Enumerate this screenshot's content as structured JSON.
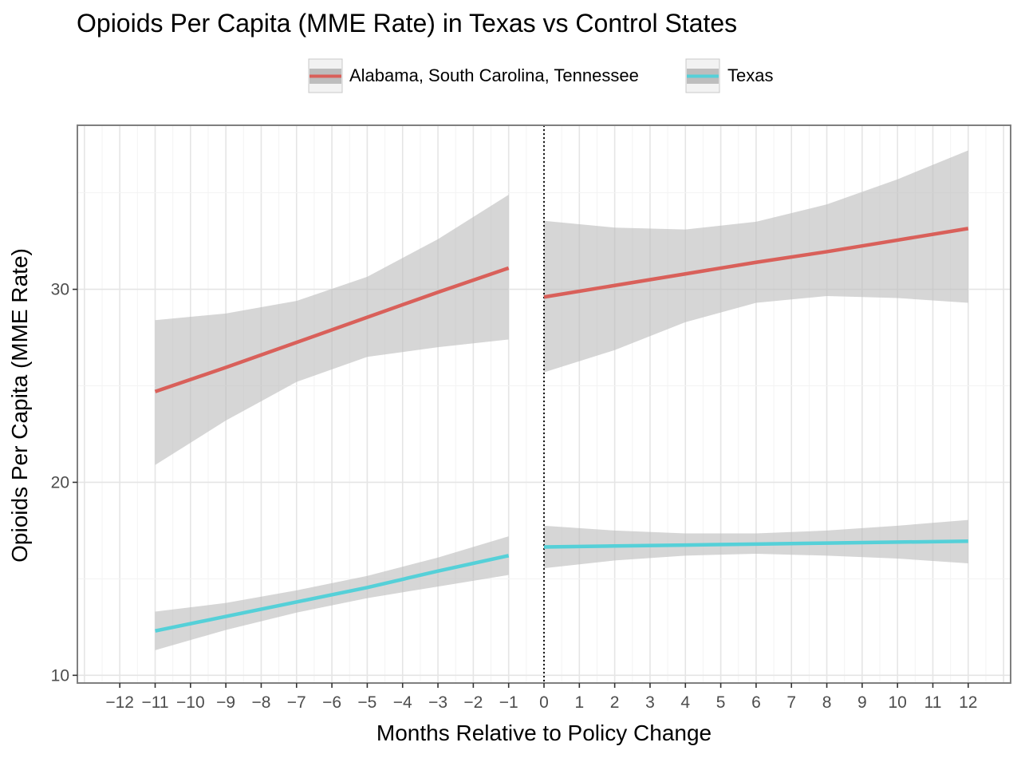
{
  "chart_data": {
    "type": "line",
    "title": "Opioids Per Capita (MME Rate) in Texas vs Control States",
    "xlabel": "Months Relative to Policy Change",
    "ylabel": "Opioids Per Capita (MME Rate)",
    "xlim": [
      -13.2,
      13.2
    ],
    "ylim": [
      9.6,
      38.5
    ],
    "x_ticks": [
      -12,
      -11,
      -10,
      -9,
      -8,
      -7,
      -6,
      -5,
      -4,
      -3,
      -2,
      -1,
      0,
      1,
      2,
      3,
      4,
      5,
      6,
      7,
      8,
      9,
      10,
      11,
      12
    ],
    "x_tick_labels": [
      "−12",
      "−11",
      "−10",
      "−9",
      "−8",
      "−7",
      "−6",
      "−5",
      "−4",
      "−3",
      "−2",
      "−1",
      "0",
      "1",
      "2",
      "3",
      "4",
      "5",
      "6",
      "7",
      "8",
      "9",
      "10",
      "11",
      "12"
    ],
    "y_ticks": [
      10,
      20,
      30
    ],
    "y_tick_labels": [
      "10",
      "20",
      "30"
    ],
    "grid": true,
    "policy_line_x": 0,
    "legend": {
      "position": "top-center"
    },
    "series": [
      {
        "name": "Alabama, South Carolina, Tennessee",
        "color": "#d9605a",
        "segments": [
          {
            "x": [
              -11,
              -9,
              -7,
              -5,
              -3,
              -1
            ],
            "y": [
              24.7,
              25.95,
              27.25,
              28.55,
              29.85,
              31.1
            ],
            "lower": [
              20.9,
              23.2,
              25.2,
              26.5,
              27.0,
              27.4
            ],
            "upper": [
              28.4,
              28.75,
              29.4,
              30.65,
              32.6,
              34.9
            ]
          },
          {
            "x": [
              0,
              2,
              4,
              6,
              8,
              10,
              12
            ],
            "y": [
              29.6,
              30.2,
              30.8,
              31.4,
              31.95,
              32.55,
              33.15
            ],
            "lower": [
              25.7,
              26.85,
              28.3,
              29.3,
              29.65,
              29.55,
              29.3
            ],
            "upper": [
              33.55,
              33.2,
              33.1,
              33.5,
              34.4,
              35.7,
              37.2
            ]
          }
        ]
      },
      {
        "name": "Texas",
        "color": "#55d0d8",
        "segments": [
          {
            "x": [
              -11,
              -9,
              -7,
              -5,
              -3,
              -1
            ],
            "y": [
              12.3,
              13.05,
              13.8,
              14.55,
              15.4,
              16.2
            ],
            "lower": [
              11.3,
              12.35,
              13.25,
              14.0,
              14.6,
              15.2
            ],
            "upper": [
              13.3,
              13.75,
              14.4,
              15.15,
              16.1,
              17.2
            ]
          },
          {
            "x": [
              0,
              2,
              4,
              6,
              8,
              10,
              12
            ],
            "y": [
              16.65,
              16.7,
              16.75,
              16.8,
              16.85,
              16.9,
              16.95
            ],
            "lower": [
              15.55,
              15.95,
              16.2,
              16.3,
              16.2,
              16.05,
              15.8
            ],
            "upper": [
              17.75,
              17.5,
              17.35,
              17.35,
              17.5,
              17.75,
              18.05
            ]
          }
        ]
      }
    ]
  }
}
